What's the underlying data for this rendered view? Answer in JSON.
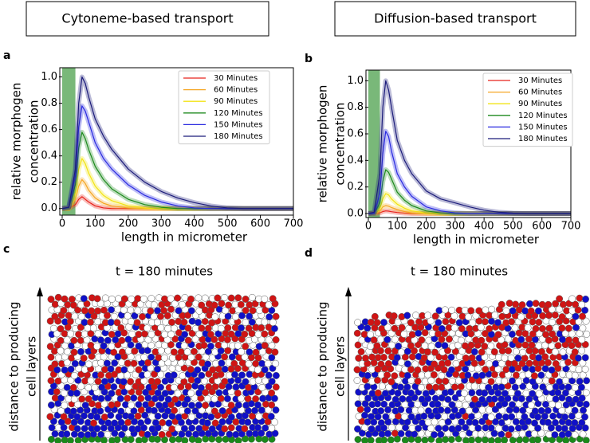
{
  "headers": [
    "Cytoneme-based transport",
    "Diffusion-based transport"
  ],
  "panel_labels": [
    "a",
    "b",
    "c",
    "d"
  ],
  "chart_data": [
    {
      "type": "line",
      "xlabel": "length in micrometer",
      "ylabel": [
        "relative morphogen",
        "concentration"
      ],
      "x": [
        0,
        20,
        40,
        50,
        60,
        70,
        80,
        100,
        125,
        150,
        200,
        250,
        300,
        350,
        400,
        450,
        500,
        550,
        600,
        700
      ],
      "series": [
        {
          "name": "30 Minutes",
          "color": "#e8231c",
          "values": [
            0,
            0,
            0.03,
            0.07,
            0.09,
            0.07,
            0.05,
            0.02,
            0.005,
            0,
            0,
            0,
            0,
            0,
            0,
            0,
            0,
            0,
            0,
            0
          ]
        },
        {
          "name": "60 Minutes",
          "color": "#f5a623",
          "values": [
            0,
            0,
            0.07,
            0.17,
            0.22,
            0.19,
            0.14,
            0.08,
            0.04,
            0.02,
            0.005,
            0,
            0,
            0,
            0,
            0,
            0,
            0,
            0,
            0
          ]
        },
        {
          "name": "90 Minutes",
          "color": "#f2e313",
          "values": [
            0,
            0,
            0.12,
            0.3,
            0.38,
            0.34,
            0.27,
            0.17,
            0.1,
            0.06,
            0.02,
            0.005,
            0,
            0,
            0,
            0,
            0,
            0,
            0,
            0
          ]
        },
        {
          "name": "120 Minutes",
          "color": "#1e8a1e",
          "values": [
            0,
            0.005,
            0.18,
            0.46,
            0.58,
            0.53,
            0.45,
            0.32,
            0.22,
            0.15,
            0.07,
            0.03,
            0.01,
            0,
            0,
            0,
            0,
            0,
            0,
            0
          ]
        },
        {
          "name": "150 Minutes",
          "color": "#2a2ae0",
          "values": [
            0,
            0.01,
            0.25,
            0.62,
            0.78,
            0.74,
            0.66,
            0.5,
            0.38,
            0.3,
            0.18,
            0.1,
            0.05,
            0.02,
            0.005,
            0,
            0,
            0,
            0,
            0
          ]
        },
        {
          "name": "180 Minutes",
          "color": "#1c1c7a",
          "values": [
            0,
            0.01,
            0.3,
            0.8,
            1.0,
            0.95,
            0.85,
            0.68,
            0.55,
            0.45,
            0.3,
            0.2,
            0.13,
            0.08,
            0.045,
            0.02,
            0.005,
            0,
            0,
            0
          ]
        }
      ],
      "xlim": [
        0,
        700
      ],
      "xticks": [
        0,
        100,
        200,
        300,
        400,
        500,
        600,
        700
      ],
      "ylim": [
        -0.05,
        1.07
      ],
      "yticks": [
        {
          "value": 0,
          "label": "0.0"
        },
        0.2,
        0.4,
        0.6,
        0.8,
        {
          "value": 1,
          "label": "1.0"
        }
      ],
      "shaded_region": {
        "xrange": [
          0,
          40
        ],
        "color": "#6ab06a"
      },
      "legend": "upper right",
      "grid": false
    },
    {
      "type": "line",
      "xlabel": "length in micrometer",
      "ylabel": [
        "relative morphogen",
        "concentration"
      ],
      "x": [
        0,
        20,
        40,
        50,
        60,
        70,
        80,
        100,
        125,
        150,
        200,
        250,
        300,
        350,
        400,
        450,
        500,
        550,
        600,
        700
      ],
      "series": [
        {
          "name": "30 Minutes",
          "color": "#e8231c",
          "values": [
            0,
            0,
            0.005,
            0.015,
            0.02,
            0.018,
            0.014,
            0.008,
            0.003,
            0,
            0,
            0,
            0,
            0,
            0,
            0,
            0,
            0,
            0,
            0
          ]
        },
        {
          "name": "60 Minutes",
          "color": "#f5a623",
          "values": [
            0,
            0,
            0.02,
            0.05,
            0.06,
            0.055,
            0.045,
            0.03,
            0.015,
            0.005,
            0,
            0,
            0,
            0,
            0,
            0,
            0,
            0,
            0,
            0
          ]
        },
        {
          "name": "90 Minutes",
          "color": "#f2e313",
          "values": [
            0,
            0,
            0.04,
            0.11,
            0.15,
            0.14,
            0.11,
            0.07,
            0.04,
            0.02,
            0.005,
            0,
            0,
            0,
            0,
            0,
            0,
            0,
            0,
            0
          ]
        },
        {
          "name": "120 Minutes",
          "color": "#1e8a1e",
          "values": [
            0,
            0,
            0.08,
            0.24,
            0.33,
            0.31,
            0.26,
            0.16,
            0.1,
            0.06,
            0.02,
            0.005,
            0,
            0,
            0,
            0,
            0,
            0,
            0,
            0
          ]
        },
        {
          "name": "150 Minutes",
          "color": "#2a2ae0",
          "values": [
            0,
            0,
            0.15,
            0.45,
            0.62,
            0.58,
            0.47,
            0.3,
            0.2,
            0.13,
            0.05,
            0.02,
            0.005,
            0,
            0,
            0,
            0,
            0,
            0,
            0
          ]
        },
        {
          "name": "180 Minutes",
          "color": "#1c1c7a",
          "values": [
            0,
            0.01,
            0.3,
            0.8,
            1.0,
            0.93,
            0.8,
            0.55,
            0.4,
            0.3,
            0.17,
            0.11,
            0.08,
            0.05,
            0.025,
            0.01,
            0.003,
            0,
            0,
            0
          ]
        }
      ],
      "xlim": [
        0,
        700
      ],
      "xticks": [
        0,
        100,
        200,
        300,
        400,
        500,
        600,
        700
      ],
      "ylim": [
        -0.03,
        1.08
      ],
      "yticks": [
        {
          "value": 0,
          "label": "0.0"
        },
        0.2,
        0.4,
        0.6,
        0.8,
        {
          "value": 1,
          "label": "1.0"
        }
      ],
      "shaded_region": {
        "xrange": [
          0,
          40
        ],
        "color": "#6ab06a"
      },
      "legend": "upper right",
      "grid": false
    }
  ],
  "cell_panels": [
    {
      "title": "t = 180 minutes",
      "ylabel": [
        "distance to producing",
        "cell layers"
      ]
    },
    {
      "title": "t = 180 minutes",
      "ylabel": [
        "distance to producing",
        "cell layers"
      ]
    }
  ]
}
